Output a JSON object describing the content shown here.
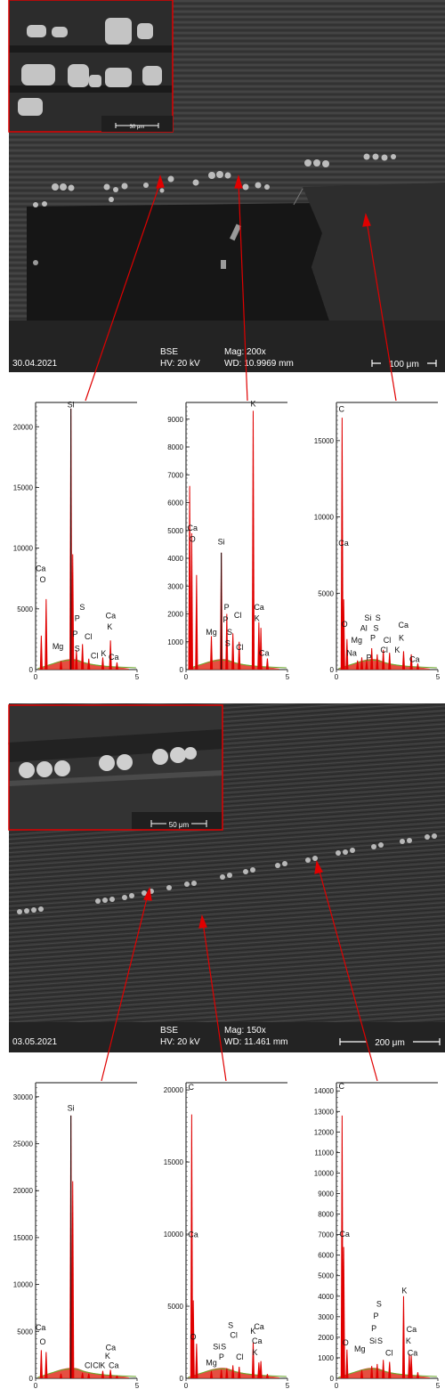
{
  "panels": [
    {
      "date": "30.04.2021",
      "detector": "BSE",
      "hv": "HV: 20 kV",
      "mag": "Mag: 200x",
      "wd": "WD: 10.9969 mm",
      "scale_main": "100 μm",
      "scale_inset": "30 μm"
    },
    {
      "date": "03.05.2021",
      "detector": "BSE",
      "hv": "HV: 20 kV",
      "mag": "Mag: 150x",
      "wd": "WD: 11.461 mm",
      "scale_main": "200 μm",
      "scale_inset": "50 μm"
    }
  ],
  "chart_data": [
    {
      "type": "bar",
      "x_ticks": [
        "0",
        "5"
      ],
      "xlim": [
        0,
        5
      ],
      "ylim": [
        0,
        22000
      ],
      "y_ticks": [
        0,
        5000,
        10000,
        15000,
        20000
      ],
      "peaks": [
        {
          "x": 0.28,
          "y": 2800
        },
        {
          "x": 0.52,
          "y": 5800
        },
        {
          "x": 1.25,
          "y": 700
        },
        {
          "x": 1.74,
          "y": 21500
        },
        {
          "x": 1.83,
          "y": 9500
        },
        {
          "x": 2.01,
          "y": 1600
        },
        {
          "x": 2.31,
          "y": 2100
        },
        {
          "x": 2.62,
          "y": 900
        },
        {
          "x": 3.31,
          "y": 1000
        },
        {
          "x": 3.69,
          "y": 2400
        },
        {
          "x": 4.01,
          "y": 600
        }
      ],
      "elements": [
        {
          "label": "Si",
          "x": 1.74,
          "y": 21600
        },
        {
          "label": "Ca",
          "x": 0.25,
          "y": 8100
        },
        {
          "label": "O",
          "x": 0.35,
          "y": 7200
        },
        {
          "label": "S",
          "x": 2.3,
          "y": 4900
        },
        {
          "label": "P",
          "x": 2.05,
          "y": 4000
        },
        {
          "label": "Ca",
          "x": 3.7,
          "y": 4200
        },
        {
          "label": "K",
          "x": 3.65,
          "y": 3300
        },
        {
          "label": "P",
          "x": 1.95,
          "y": 2700
        },
        {
          "label": "Cl",
          "x": 2.6,
          "y": 2500
        },
        {
          "label": "Mg",
          "x": 1.1,
          "y": 1700
        },
        {
          "label": "S",
          "x": 2.05,
          "y": 1500
        },
        {
          "label": "K",
          "x": 3.35,
          "y": 1100
        },
        {
          "label": "Cl",
          "x": 2.9,
          "y": 900
        },
        {
          "label": "Ca",
          "x": 3.85,
          "y": 800
        }
      ]
    },
    {
      "type": "bar",
      "x_ticks": [
        "0",
        "5"
      ],
      "xlim": [
        0,
        5
      ],
      "ylim": [
        0,
        9600
      ],
      "y_ticks": [
        0,
        1000,
        2000,
        3000,
        4000,
        5000,
        6000,
        7000,
        8000,
        9000
      ],
      "peaks": [
        {
          "x": 0.18,
          "y": 6600
        },
        {
          "x": 0.28,
          "y": 4900
        },
        {
          "x": 0.52,
          "y": 3400
        },
        {
          "x": 1.25,
          "y": 1200
        },
        {
          "x": 1.74,
          "y": 4200
        },
        {
          "x": 2.01,
          "y": 2000
        },
        {
          "x": 2.31,
          "y": 1300
        },
        {
          "x": 2.62,
          "y": 1000
        },
        {
          "x": 3.31,
          "y": 9300
        },
        {
          "x": 3.59,
          "y": 1700
        },
        {
          "x": 3.69,
          "y": 1500
        },
        {
          "x": 4.01,
          "y": 400
        }
      ],
      "elements": [
        {
          "label": "K",
          "x": 3.31,
          "y": 9450
        },
        {
          "label": "Ca",
          "x": 0.32,
          "y": 5000
        },
        {
          "label": "O",
          "x": 0.32,
          "y": 4600
        },
        {
          "label": "Si",
          "x": 1.74,
          "y": 4500
        },
        {
          "label": "P",
          "x": 2.0,
          "y": 2150
        },
        {
          "label": "Cl",
          "x": 2.55,
          "y": 1850
        },
        {
          "label": "P",
          "x": 1.95,
          "y": 1700
        },
        {
          "label": "Ca",
          "x": 3.6,
          "y": 2150
        },
        {
          "label": "K",
          "x": 3.5,
          "y": 1750
        },
        {
          "label": "Mg",
          "x": 1.25,
          "y": 1250
        },
        {
          "label": "S",
          "x": 2.15,
          "y": 1250
        },
        {
          "label": "S",
          "x": 2.05,
          "y": 850
        },
        {
          "label": "Cl",
          "x": 2.65,
          "y": 700
        },
        {
          "label": "Ca",
          "x": 3.85,
          "y": 500
        }
      ]
    },
    {
      "type": "bar",
      "x_ticks": [
        "0",
        "5"
      ],
      "xlim": [
        0,
        5
      ],
      "ylim": [
        0,
        17500
      ],
      "y_ticks": [
        0,
        5000,
        10000,
        15000
      ],
      "peaks": [
        {
          "x": 0.28,
          "y": 16500
        },
        {
          "x": 0.36,
          "y": 4600
        },
        {
          "x": 0.52,
          "y": 2000
        },
        {
          "x": 1.04,
          "y": 600
        },
        {
          "x": 1.25,
          "y": 800
        },
        {
          "x": 1.49,
          "y": 600
        },
        {
          "x": 1.74,
          "y": 1400
        },
        {
          "x": 2.01,
          "y": 1000
        },
        {
          "x": 2.31,
          "y": 1300
        },
        {
          "x": 2.62,
          "y": 1100
        },
        {
          "x": 3.31,
          "y": 1200
        },
        {
          "x": 3.69,
          "y": 1000
        },
        {
          "x": 4.01,
          "y": 400
        }
      ],
      "elements": [
        {
          "label": "C",
          "x": 0.25,
          "y": 16900
        },
        {
          "label": "Ca",
          "x": 0.35,
          "y": 8100
        },
        {
          "label": "O",
          "x": 0.4,
          "y": 2800
        },
        {
          "label": "Si",
          "x": 1.55,
          "y": 3200
        },
        {
          "label": "S",
          "x": 2.05,
          "y": 3200
        },
        {
          "label": "Al",
          "x": 1.35,
          "y": 2550
        },
        {
          "label": "S",
          "x": 1.95,
          "y": 2550
        },
        {
          "label": "Ca",
          "x": 3.3,
          "y": 2750
        },
        {
          "label": "Cl",
          "x": 2.5,
          "y": 1750
        },
        {
          "label": "Mg",
          "x": 1.0,
          "y": 1750
        },
        {
          "label": "P",
          "x": 1.8,
          "y": 1900
        },
        {
          "label": "K",
          "x": 3.2,
          "y": 1900
        },
        {
          "label": "Cl",
          "x": 2.35,
          "y": 1100
        },
        {
          "label": "K",
          "x": 3.0,
          "y": 1100
        },
        {
          "label": "Na",
          "x": 0.75,
          "y": 900
        },
        {
          "label": "P",
          "x": 1.6,
          "y": 600
        },
        {
          "label": "Ca",
          "x": 3.85,
          "y": 500
        }
      ]
    },
    {
      "type": "bar",
      "x_ticks": [
        "0",
        "5"
      ],
      "xlim": [
        0,
        5
      ],
      "ylim": [
        0,
        31500
      ],
      "y_ticks": [
        0,
        5000,
        10000,
        15000,
        20000,
        25000,
        30000
      ],
      "peaks": [
        {
          "x": 0.28,
          "y": 3000
        },
        {
          "x": 0.52,
          "y": 2800
        },
        {
          "x": 1.25,
          "y": 500
        },
        {
          "x": 1.74,
          "y": 28000
        },
        {
          "x": 1.83,
          "y": 21000
        },
        {
          "x": 2.31,
          "y": 600
        },
        {
          "x": 2.62,
          "y": 500
        },
        {
          "x": 3.31,
          "y": 800
        },
        {
          "x": 3.69,
          "y": 900
        },
        {
          "x": 4.01,
          "y": 300
        }
      ],
      "elements": [
        {
          "label": "Si",
          "x": 1.74,
          "y": 28500
        },
        {
          "label": "Ca",
          "x": 0.25,
          "y": 5100
        },
        {
          "label": "O",
          "x": 0.35,
          "y": 3600
        },
        {
          "label": "Ca",
          "x": 3.7,
          "y": 3000
        },
        {
          "label": "K",
          "x": 3.55,
          "y": 2100
        },
        {
          "label": "Cl",
          "x": 2.6,
          "y": 1100
        },
        {
          "label": "Cl",
          "x": 3.0,
          "y": 1100
        },
        {
          "label": "K",
          "x": 3.3,
          "y": 1100
        },
        {
          "label": "Ca",
          "x": 3.85,
          "y": 1100
        }
      ]
    },
    {
      "type": "bar",
      "x_ticks": [
        "0",
        "5"
      ],
      "xlim": [
        0,
        5
      ],
      "ylim": [
        0,
        20500
      ],
      "y_ticks": [
        0,
        5000,
        10000,
        15000,
        20000
      ],
      "peaks": [
        {
          "x": 0.28,
          "y": 18300
        },
        {
          "x": 0.36,
          "y": 5400
        },
        {
          "x": 0.52,
          "y": 2400
        },
        {
          "x": 1.25,
          "y": 500
        },
        {
          "x": 1.74,
          "y": 600
        },
        {
          "x": 2.01,
          "y": 700
        },
        {
          "x": 2.31,
          "y": 900
        },
        {
          "x": 2.62,
          "y": 800
        },
        {
          "x": 3.31,
          "y": 2500
        },
        {
          "x": 3.59,
          "y": 1100
        },
        {
          "x": 3.69,
          "y": 1200
        },
        {
          "x": 4.01,
          "y": 300
        }
      ],
      "elements": [
        {
          "label": "C",
          "x": 0.25,
          "y": 20000
        },
        {
          "label": "Ca",
          "x": 0.35,
          "y": 9800
        },
        {
          "label": "O",
          "x": 0.35,
          "y": 2700
        },
        {
          "label": "S",
          "x": 2.2,
          "y": 3500
        },
        {
          "label": "Cl",
          "x": 2.35,
          "y": 2800
        },
        {
          "label": "K",
          "x": 3.3,
          "y": 3100
        },
        {
          "label": "Ca",
          "x": 3.6,
          "y": 3400
        },
        {
          "label": "Si",
          "x": 1.5,
          "y": 2000
        },
        {
          "label": "S",
          "x": 1.85,
          "y": 2000
        },
        {
          "label": "Ca",
          "x": 3.5,
          "y": 2400
        },
        {
          "label": "K",
          "x": 3.4,
          "y": 1600
        },
        {
          "label": "P",
          "x": 1.75,
          "y": 1300
        },
        {
          "label": "Cl",
          "x": 2.65,
          "y": 1300
        },
        {
          "label": "Mg",
          "x": 1.25,
          "y": 900
        }
      ]
    },
    {
      "type": "bar",
      "x_ticks": [
        "0",
        "5"
      ],
      "xlim": [
        0,
        5
      ],
      "ylim": [
        0,
        14400
      ],
      "y_ticks": [
        0,
        1000,
        2000,
        3000,
        4000,
        5000,
        6000,
        7000,
        8000,
        9000,
        10000,
        11000,
        12000,
        13000,
        14000
      ],
      "peaks": [
        {
          "x": 0.28,
          "y": 12800
        },
        {
          "x": 0.36,
          "y": 6400
        },
        {
          "x": 0.52,
          "y": 1400
        },
        {
          "x": 1.25,
          "y": 400
        },
        {
          "x": 1.74,
          "y": 600
        },
        {
          "x": 2.01,
          "y": 700
        },
        {
          "x": 2.31,
          "y": 900
        },
        {
          "x": 2.62,
          "y": 800
        },
        {
          "x": 3.31,
          "y": 4000
        },
        {
          "x": 3.59,
          "y": 1200
        },
        {
          "x": 3.69,
          "y": 1100
        },
        {
          "x": 4.01,
          "y": 300
        }
      ],
      "elements": [
        {
          "label": "C",
          "x": 0.25,
          "y": 14100
        },
        {
          "label": "Ca",
          "x": 0.4,
          "y": 6900
        },
        {
          "label": "O",
          "x": 0.45,
          "y": 1600
        },
        {
          "label": "K",
          "x": 3.35,
          "y": 4150
        },
        {
          "label": "S",
          "x": 2.1,
          "y": 3500
        },
        {
          "label": "P",
          "x": 1.95,
          "y": 2900
        },
        {
          "label": "P",
          "x": 1.85,
          "y": 2300
        },
        {
          "label": "Ca",
          "x": 3.7,
          "y": 2250
        },
        {
          "label": "S",
          "x": 2.15,
          "y": 1700
        },
        {
          "label": "K",
          "x": 3.55,
          "y": 1700
        },
        {
          "label": "Ca",
          "x": 3.75,
          "y": 1100
        },
        {
          "label": "Si",
          "x": 1.8,
          "y": 1700
        },
        {
          "label": "Cl",
          "x": 2.6,
          "y": 1100
        },
        {
          "label": "Mg",
          "x": 1.15,
          "y": 1300
        }
      ]
    }
  ]
}
